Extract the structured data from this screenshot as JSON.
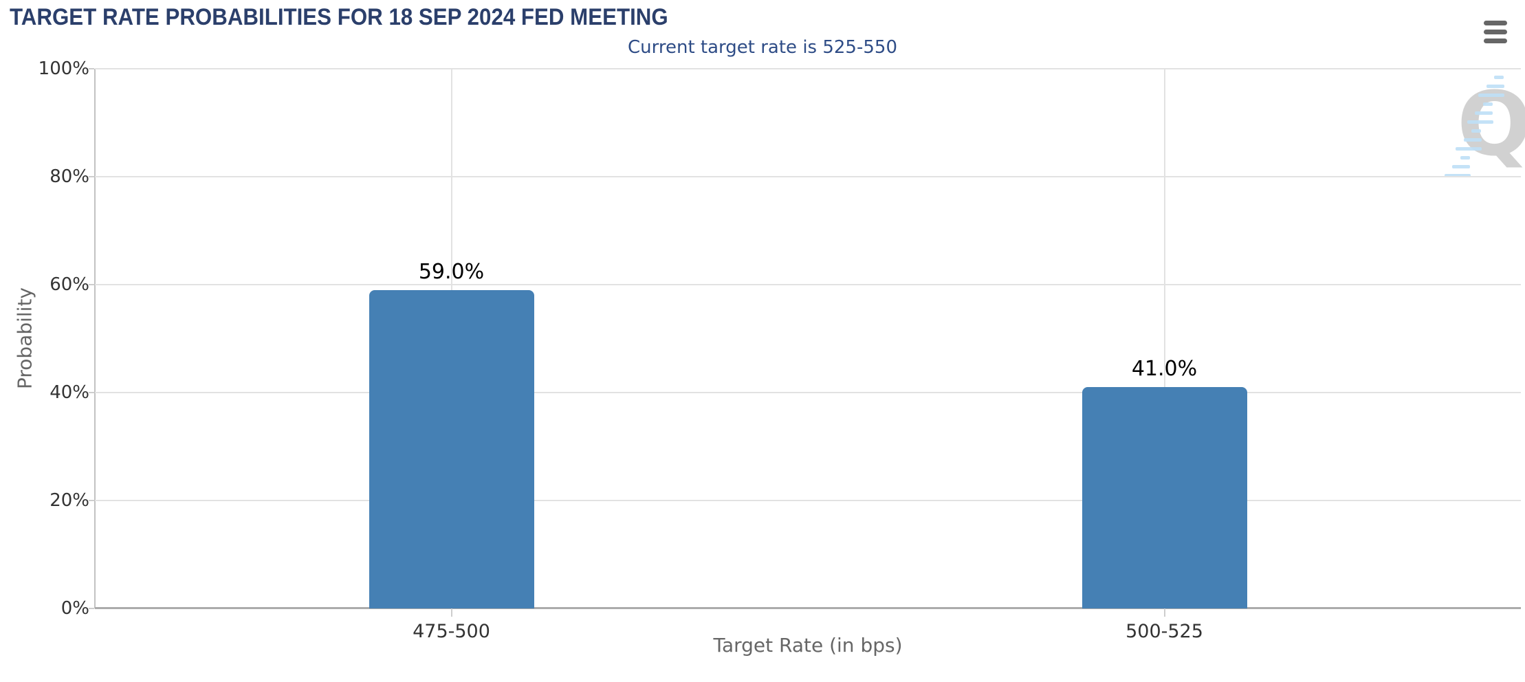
{
  "chart_data": {
    "type": "bar",
    "title": "TARGET RATE PROBABILITIES FOR 18 SEP 2024 FED MEETING",
    "subtitle": "Current target rate is 525-550",
    "categories": [
      "475-500",
      "500-525"
    ],
    "values": [
      59.0,
      41.0
    ],
    "value_labels": [
      "59.0%",
      "41.0%"
    ],
    "xlabel": "Target Rate (in bps)",
    "ylabel": "Probability",
    "ylim": [
      0,
      100
    ],
    "yticks": [
      0,
      20,
      40,
      60,
      80,
      100
    ],
    "ytick_labels": [
      "0%",
      "20%",
      "40%",
      "60%",
      "80%",
      "100%"
    ],
    "grid": true,
    "legend": false,
    "legend_position": "none",
    "vertical_gridlines_at_category_centers": true
  },
  "menu": {
    "icon": "hamburger-menu-icon"
  },
  "watermark": {
    "icon": "quikstrike-logo-icon",
    "letter": "Q"
  },
  "colors": {
    "title_color": "#2B3F6B",
    "subtitle_color": "#2E4C86",
    "bar_color": "#4580B4",
    "grid_color": "#E2E2E2",
    "axis_line_color": "#ABABAB",
    "y_axis_line_color": "#C2C2C2",
    "tick_color": "#CDCDCD",
    "tick_label_color": "#333333",
    "axis_title_color": "#666666",
    "value_label_color": "#000000",
    "menu_color": "#666666",
    "watermark_letter_color": "#C9C9C9",
    "watermark_dash_color": "#BEDFF6"
  }
}
